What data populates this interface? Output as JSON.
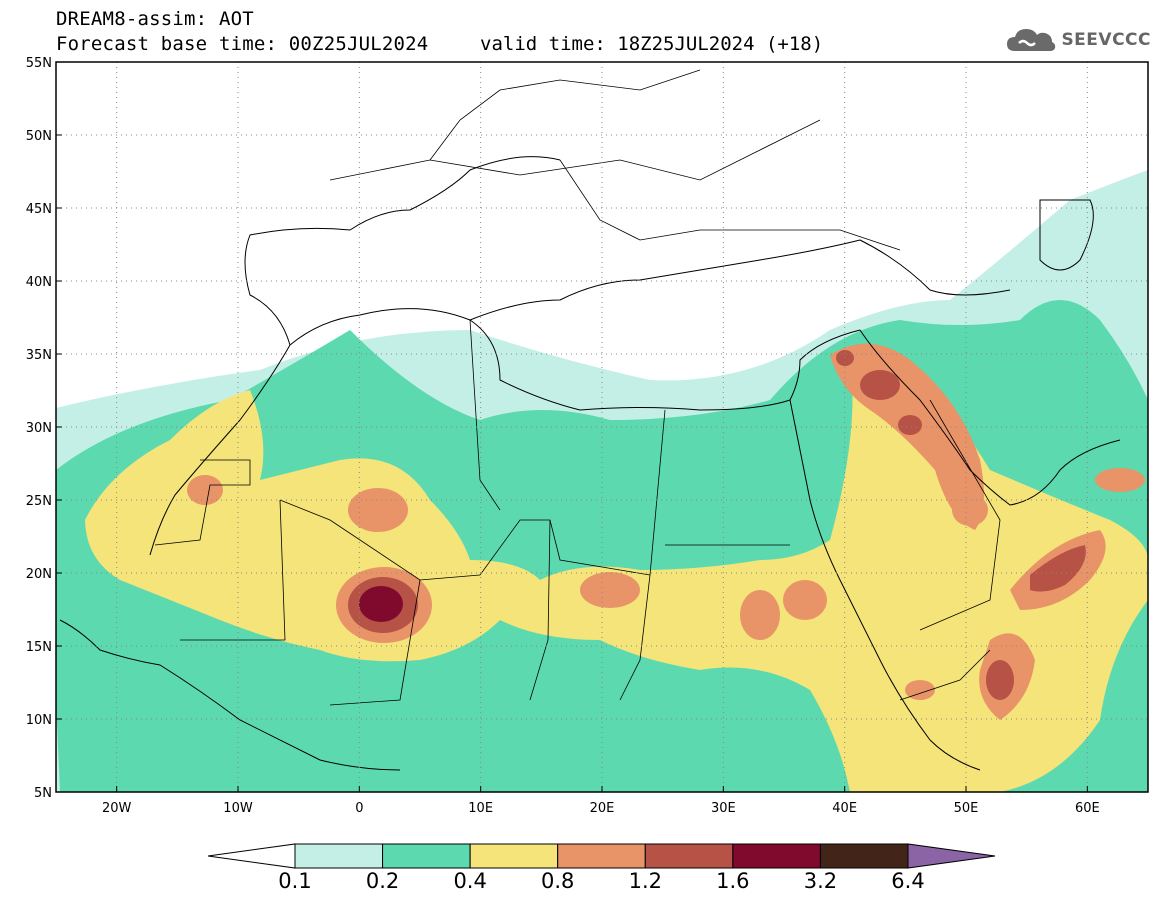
{
  "header": {
    "title": "DREAM8-assim: AOT",
    "base_time": "Forecast base time: 00Z25JUL2024",
    "valid_time": "valid time: 18Z25JUL2024 (+18)"
  },
  "logo": {
    "text": "SEEVCCC",
    "icon": "cloud-icon"
  },
  "map": {
    "lon_range": [
      -25,
      65
    ],
    "lat_range": [
      5,
      55
    ],
    "lat_labels": [
      "55N",
      "50N",
      "45N",
      "40N",
      "35N",
      "30N",
      "25N",
      "20N",
      "15N",
      "10N",
      "5N"
    ],
    "lon_labels": [
      "20W",
      "10W",
      "0",
      "10E",
      "20E",
      "30E",
      "40E",
      "50E",
      "60E"
    ],
    "grid": "dotted"
  },
  "colorbar": {
    "levels": [
      "0.1",
      "0.2",
      "0.4",
      "0.8",
      "1.2",
      "1.6",
      "3.2",
      "6.4"
    ],
    "colors": [
      "#c4efe6",
      "#5dd9b0",
      "#f4e479",
      "#e89468",
      "#b65346",
      "#7f0a2e",
      "#432418"
    ],
    "under_color": "#ffffff",
    "over_color": "#8b64a6"
  }
}
